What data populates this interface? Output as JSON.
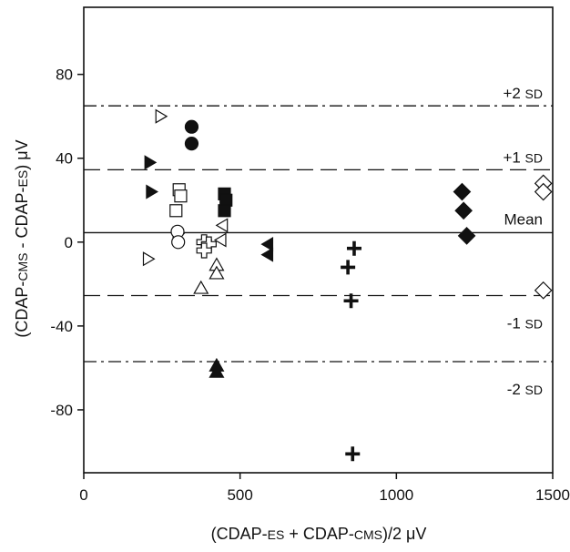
{
  "chart_data": {
    "type": "scatter",
    "title": "",
    "xlabel": {
      "p1": "(CDAP-",
      "s1": "ES",
      "p2": " + CDAP-",
      "s2": "CMS",
      "p3": ")/2  μV"
    },
    "ylabel": {
      "p1": "(CDAP-",
      "s1": "CMS",
      "p2": " - CDAP-",
      "s2": "ES",
      "p3": ")  μV"
    },
    "xlim": [
      0,
      1500
    ],
    "ylim": [
      -110,
      112
    ],
    "xticks": [
      0,
      500,
      1000,
      1500
    ],
    "xtick_labels": [
      "0",
      "500",
      "1000",
      "1500"
    ],
    "yticks": [
      80,
      40,
      0,
      -40,
      -80
    ],
    "ytick_labels": [
      "80",
      "40",
      "0",
      "-40",
      "-80"
    ],
    "grid": false,
    "reference_lines": [
      {
        "id": "plus2sd",
        "y": 65,
        "style": "dashdot",
        "label_main": "+2 ",
        "label_small": "SD"
      },
      {
        "id": "plus1sd",
        "y": 34.5,
        "style": "dashed",
        "label_main": "+1 ",
        "label_small": "SD"
      },
      {
        "id": "mean",
        "y": 4.5,
        "style": "solid",
        "label_main": "Mean",
        "label_small": ""
      },
      {
        "id": "minus1sd",
        "y": -25.5,
        "style": "dashed",
        "label_main": "-1 ",
        "label_small": "SD"
      },
      {
        "id": "minus2sd",
        "y": -57,
        "style": "dashdot",
        "label_main": "-2 ",
        "label_small": "SD"
      }
    ],
    "series": [
      {
        "marker": "triangle-right-open",
        "points": [
          [
            245,
            60
          ],
          [
            205,
            -8
          ],
          [
            300,
            4
          ]
        ]
      },
      {
        "marker": "circle-filled",
        "points": [
          [
            345,
            55
          ],
          [
            345,
            47
          ]
        ]
      },
      {
        "marker": "triangle-right-filled",
        "points": [
          [
            210,
            38
          ],
          [
            215,
            24
          ]
        ]
      },
      {
        "marker": "square-open",
        "points": [
          [
            305,
            25
          ],
          [
            310,
            22
          ],
          [
            295,
            15
          ]
        ]
      },
      {
        "marker": "square-filled",
        "points": [
          [
            450,
            23
          ],
          [
            455,
            20
          ],
          [
            450,
            15
          ]
        ]
      },
      {
        "marker": "circle-open",
        "points": [
          [
            300,
            5
          ],
          [
            302,
            0
          ]
        ]
      },
      {
        "marker": "cross-open",
        "points": [
          [
            385,
            0
          ],
          [
            400,
            -1
          ],
          [
            385,
            -4
          ]
        ]
      },
      {
        "marker": "triangle-left-open",
        "points": [
          [
            445,
            8
          ],
          [
            440,
            1
          ]
        ]
      },
      {
        "marker": "triangle-up-open",
        "points": [
          [
            425,
            -11
          ],
          [
            425,
            -15
          ],
          [
            375,
            -22
          ]
        ]
      },
      {
        "marker": "triangle-up-filled",
        "points": [
          [
            425,
            -59
          ],
          [
            425,
            -62
          ]
        ]
      },
      {
        "marker": "triangle-left-filled",
        "points": [
          [
            590,
            -1
          ],
          [
            590,
            -6
          ]
        ]
      },
      {
        "marker": "plus-filled",
        "points": [
          [
            865,
            -3
          ],
          [
            845,
            -12
          ],
          [
            855,
            -28
          ],
          [
            860,
            -101
          ]
        ]
      },
      {
        "marker": "diamond-filled",
        "points": [
          [
            1210,
            24
          ],
          [
            1215,
            15
          ],
          [
            1225,
            3
          ]
        ]
      },
      {
        "marker": "diamond-open",
        "points": [
          [
            1470,
            28
          ],
          [
            1470,
            24
          ],
          [
            1470,
            -23
          ]
        ]
      }
    ]
  }
}
